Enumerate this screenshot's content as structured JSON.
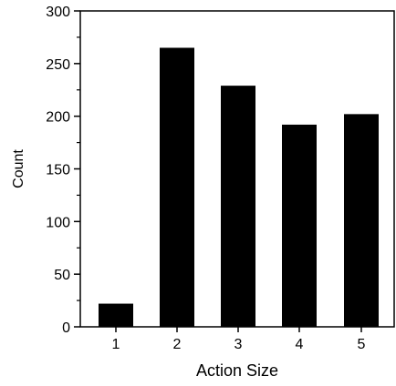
{
  "chart_data": {
    "type": "bar",
    "title": "",
    "xlabel": "Action Size",
    "ylabel": "Count",
    "categories": [
      "1",
      "2",
      "3",
      "4",
      "5"
    ],
    "values": [
      22,
      265,
      229,
      192,
      202
    ],
    "ylim": [
      0,
      300
    ],
    "yticks": [
      0,
      50,
      100,
      150,
      200,
      250,
      300
    ],
    "y_minor_step": 25,
    "grid": false,
    "legend": "none",
    "bar_color": "#000000",
    "axis_color": "#000000",
    "background": "#ffffff"
  }
}
